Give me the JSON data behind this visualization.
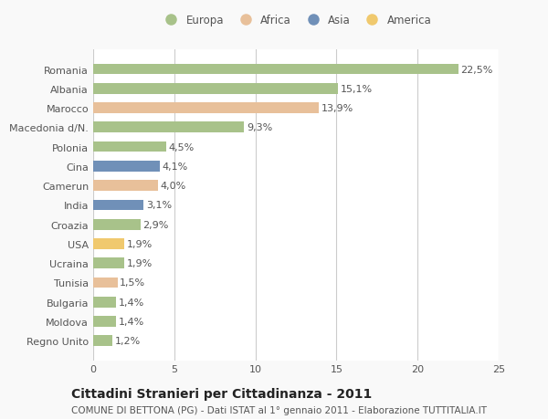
{
  "countries": [
    "Romania",
    "Albania",
    "Marocco",
    "Macedonia d/N.",
    "Polonia",
    "Cina",
    "Camerun",
    "India",
    "Croazia",
    "USA",
    "Ucraina",
    "Tunisia",
    "Bulgaria",
    "Moldova",
    "Regno Unito"
  ],
  "values": [
    22.5,
    15.1,
    13.9,
    9.3,
    4.5,
    4.1,
    4.0,
    3.1,
    2.9,
    1.9,
    1.9,
    1.5,
    1.4,
    1.4,
    1.2
  ],
  "regions": [
    "Europa",
    "Europa",
    "Africa",
    "Europa",
    "Europa",
    "Asia",
    "Africa",
    "Asia",
    "Europa",
    "America",
    "Europa",
    "Africa",
    "Europa",
    "Europa",
    "Europa"
  ],
  "region_colors": {
    "Europa": "#a8c28a",
    "Africa": "#e8c09a",
    "Asia": "#7090b8",
    "America": "#f0c96e"
  },
  "legend_labels": [
    "Europa",
    "Africa",
    "Asia",
    "America"
  ],
  "legend_colors": [
    "#a8c28a",
    "#e8c09a",
    "#7090b8",
    "#f0c96e"
  ],
  "xlim": [
    0,
    25
  ],
  "xticks": [
    0,
    5,
    10,
    15,
    20,
    25
  ],
  "title": "Cittadini Stranieri per Cittadinanza - 2011",
  "subtitle": "COMUNE DI BETTONA (PG) - Dati ISTAT al 1° gennaio 2011 - Elaborazione TUTTITALIA.IT",
  "background_color": "#f9f9f9",
  "bar_background": "#ffffff",
  "grid_color": "#cccccc",
  "text_color": "#555555",
  "title_fontsize": 10,
  "subtitle_fontsize": 7.5,
  "label_fontsize": 8,
  "value_fontsize": 8,
  "bar_height": 0.55
}
